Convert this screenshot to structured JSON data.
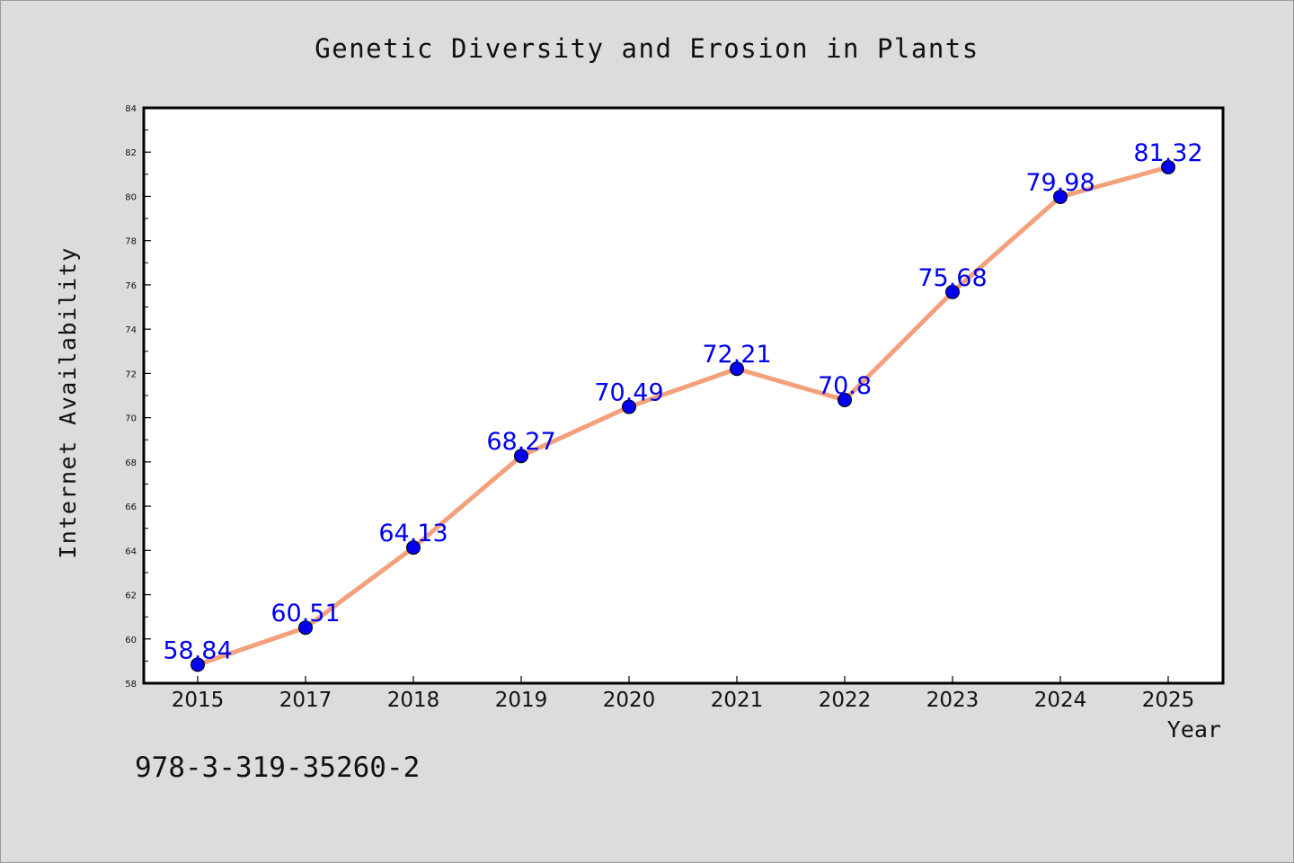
{
  "chart_data": {
    "type": "line",
    "title": "Genetic Diversity and Erosion in Plants",
    "xlabel": "Year",
    "ylabel": "Internet Availability",
    "categories": [
      "2015",
      "2017",
      "2018",
      "2019",
      "2020",
      "2021",
      "2022",
      "2023",
      "2024",
      "2025"
    ],
    "values": [
      58.84,
      60.51,
      64.13,
      68.27,
      70.49,
      72.21,
      70.8,
      75.68,
      79.98,
      81.32
    ],
    "data_labels": [
      "58.84",
      "60.51",
      "64.13",
      "68.27",
      "70.49",
      "72.21",
      "70.8",
      "75.68",
      "79.98",
      "81.32"
    ],
    "ylim": [
      58,
      84
    ],
    "yticks": [
      "58",
      "60",
      "62",
      "64",
      "66",
      "68",
      "70",
      "72",
      "74",
      "76",
      "78",
      "80",
      "82",
      "84"
    ],
    "grid": false,
    "legend": "none",
    "line_color": "#f4a07a",
    "marker_color": "#0000ee",
    "label_color": "#0000ee"
  },
  "annotation": "978-3-319-35260-2"
}
